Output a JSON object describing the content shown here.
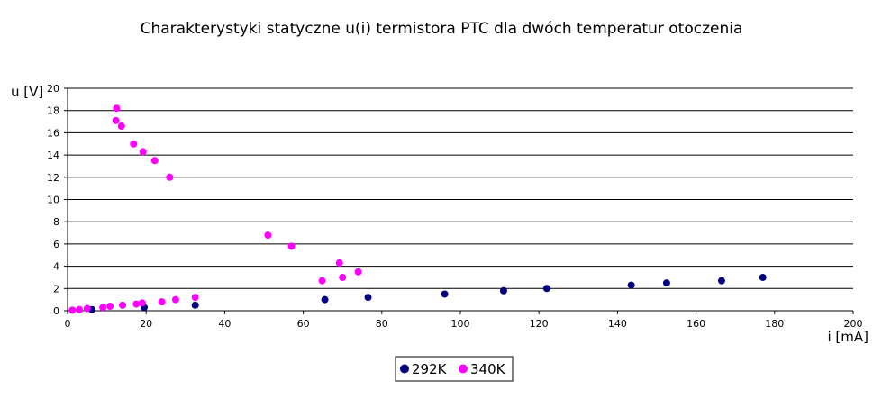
{
  "chart_data": {
    "type": "scatter",
    "title": "Charakterystyki statyczne u(i) termistora PTC dla dwóch temperatur otoczenia",
    "xlabel": "i [mA]",
    "ylabel": "u [V]",
    "xlim": [
      0,
      200
    ],
    "ylim": [
      0,
      20
    ],
    "x_ticks": [
      "0",
      "20",
      "40",
      "60",
      "80",
      "100",
      "120",
      "140",
      "160",
      "180",
      "200"
    ],
    "y_ticks": [
      "0",
      "2",
      "4",
      "6",
      "8",
      "10",
      "12",
      "14",
      "16",
      "18",
      "20"
    ],
    "grid": "horizontal",
    "legend_position": "bottom",
    "series": [
      {
        "name": "292K",
        "color": "#000080",
        "points": [
          [
            6.2,
            0.1
          ],
          [
            19.5,
            0.3
          ],
          [
            32.5,
            0.5
          ],
          [
            65.5,
            1.0
          ],
          [
            76.5,
            1.2
          ],
          [
            96,
            1.5
          ],
          [
            111,
            1.8
          ],
          [
            122,
            2.0
          ],
          [
            143.5,
            2.3
          ],
          [
            152.5,
            2.5
          ],
          [
            166.5,
            2.7
          ],
          [
            177,
            3.0
          ]
        ]
      },
      {
        "name": "340K",
        "color": "#ff00ff",
        "points": [
          [
            1.2,
            0.05
          ],
          [
            3.0,
            0.1
          ],
          [
            5.0,
            0.2
          ],
          [
            9.0,
            0.3
          ],
          [
            10.8,
            0.4
          ],
          [
            14.0,
            0.5
          ],
          [
            17.5,
            0.6
          ],
          [
            19.0,
            0.7
          ],
          [
            24.0,
            0.8
          ],
          [
            27.5,
            1.0
          ],
          [
            32.5,
            1.2
          ],
          [
            12.5,
            18.2
          ],
          [
            12.3,
            17.1
          ],
          [
            13.7,
            16.6
          ],
          [
            16.8,
            15.0
          ],
          [
            19.2,
            14.3
          ],
          [
            22.2,
            13.5
          ],
          [
            26.0,
            12.0
          ],
          [
            51.0,
            6.8
          ],
          [
            57.0,
            5.8
          ],
          [
            64.8,
            2.7
          ],
          [
            69.2,
            4.3
          ],
          [
            70.0,
            3.0
          ],
          [
            74.0,
            3.5
          ]
        ]
      }
    ]
  }
}
